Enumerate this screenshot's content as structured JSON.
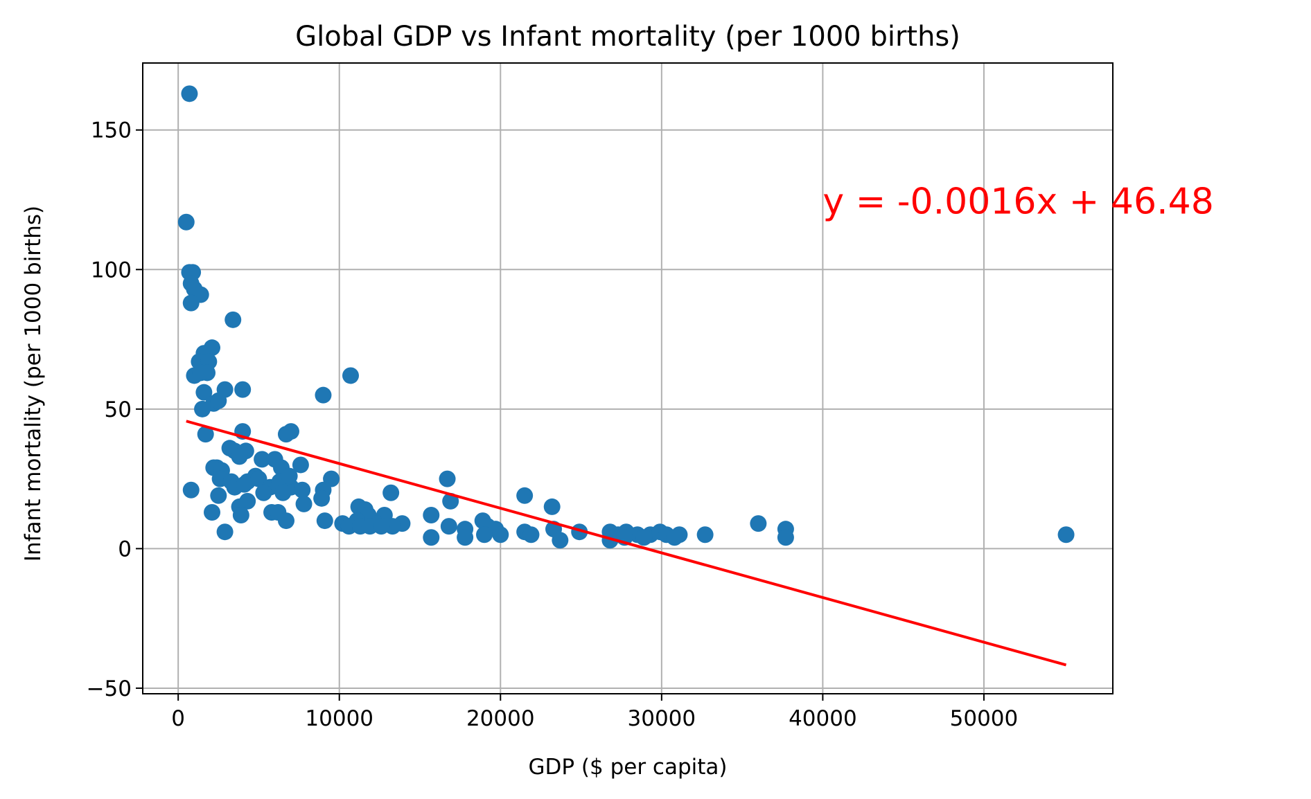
{
  "chart_data": {
    "type": "scatter",
    "title": "Global GDP vs Infant mortality (per 1000 births)",
    "xlabel": "GDP ($ per capita)",
    "ylabel": "Infant mortality (per 1000 births)",
    "xlim": [
      -2200,
      58000
    ],
    "ylim": [
      -52,
      174
    ],
    "xticks": [
      0,
      10000,
      20000,
      30000,
      40000,
      50000
    ],
    "xtick_labels": [
      "0",
      "10000",
      "20000",
      "30000",
      "40000",
      "50000"
    ],
    "yticks": [
      -50,
      0,
      50,
      100,
      150
    ],
    "ytick_labels": [
      "−50",
      "0",
      "50",
      "100",
      "150"
    ],
    "grid": true,
    "legend": "none",
    "point_color": "#1f77b4",
    "line_color": "#ff0000",
    "regression": {
      "slope": -0.0016,
      "intercept": 46.48,
      "x_start": 500,
      "x_end": 55100,
      "equation_label": "y = -0.0016x + 46.48",
      "label_x": 40000,
      "label_y": 120
    },
    "points": [
      [
        700,
        163
      ],
      [
        500,
        117
      ],
      [
        700,
        99
      ],
      [
        900,
        99
      ],
      [
        800,
        95
      ],
      [
        1000,
        93
      ],
      [
        1400,
        91
      ],
      [
        800,
        88
      ],
      [
        3400,
        82
      ],
      [
        2100,
        72
      ],
      [
        1600,
        70
      ],
      [
        1300,
        67
      ],
      [
        1900,
        67
      ],
      [
        1800,
        63
      ],
      [
        1000,
        62
      ],
      [
        1400,
        63
      ],
      [
        10700,
        62
      ],
      [
        1600,
        56
      ],
      [
        2900,
        57
      ],
      [
        4000,
        57
      ],
      [
        9000,
        55
      ],
      [
        2200,
        52
      ],
      [
        2500,
        53
      ],
      [
        1500,
        50
      ],
      [
        4000,
        42
      ],
      [
        6700,
        41
      ],
      [
        7000,
        42
      ],
      [
        1700,
        41
      ],
      [
        3200,
        36
      ],
      [
        3500,
        35
      ],
      [
        4200,
        35
      ],
      [
        3800,
        33
      ],
      [
        5200,
        32
      ],
      [
        6000,
        32
      ],
      [
        2400,
        29
      ],
      [
        2200,
        29
      ],
      [
        2700,
        28
      ],
      [
        6400,
        29
      ],
      [
        7600,
        30
      ],
      [
        4800,
        26
      ],
      [
        2600,
        25
      ],
      [
        3300,
        24
      ],
      [
        4300,
        24
      ],
      [
        5000,
        25
      ],
      [
        5700,
        22
      ],
      [
        6300,
        24
      ],
      [
        7000,
        22
      ],
      [
        6900,
        26
      ],
      [
        9500,
        25
      ],
      [
        16700,
        25
      ],
      [
        800,
        21
      ],
      [
        3500,
        22
      ],
      [
        4100,
        23
      ],
      [
        5300,
        20
      ],
      [
        6500,
        20
      ],
      [
        7700,
        21
      ],
      [
        9000,
        21
      ],
      [
        13200,
        20
      ],
      [
        21500,
        19
      ],
      [
        2500,
        19
      ],
      [
        4300,
        17
      ],
      [
        8900,
        18
      ],
      [
        16900,
        17
      ],
      [
        3800,
        15
      ],
      [
        7800,
        16
      ],
      [
        11200,
        15
      ],
      [
        11600,
        14
      ],
      [
        23200,
        15
      ],
      [
        2100,
        13
      ],
      [
        3900,
        12
      ],
      [
        5800,
        13
      ],
      [
        6200,
        13
      ],
      [
        11800,
        12
      ],
      [
        12800,
        12
      ],
      [
        15700,
        12
      ],
      [
        6700,
        10
      ],
      [
        9100,
        10
      ],
      [
        11100,
        10
      ],
      [
        10200,
        9
      ],
      [
        12300,
        9
      ],
      [
        13900,
        9
      ],
      [
        10600,
        8
      ],
      [
        11300,
        8
      ],
      [
        13300,
        8
      ],
      [
        16800,
        8
      ],
      [
        18900,
        10
      ],
      [
        36000,
        9
      ],
      [
        11900,
        8
      ],
      [
        12600,
        8
      ],
      [
        19200,
        8
      ],
      [
        2900,
        6
      ],
      [
        17800,
        7
      ],
      [
        19700,
        7
      ],
      [
        21500,
        6
      ],
      [
        23300,
        7
      ],
      [
        24900,
        6
      ],
      [
        26800,
        6
      ],
      [
        27300,
        5
      ],
      [
        27800,
        6
      ],
      [
        28500,
        5
      ],
      [
        29300,
        5
      ],
      [
        29900,
        6
      ],
      [
        30300,
        5
      ],
      [
        31100,
        5
      ],
      [
        32700,
        5
      ],
      [
        37700,
        7
      ],
      [
        55100,
        5
      ],
      [
        15700,
        4
      ],
      [
        17800,
        4
      ],
      [
        19000,
        5
      ],
      [
        20000,
        5
      ],
      [
        21900,
        5
      ],
      [
        26800,
        3
      ],
      [
        27700,
        4
      ],
      [
        28900,
        4
      ],
      [
        30800,
        4
      ],
      [
        37700,
        4
      ],
      [
        23700,
        3
      ]
    ]
  }
}
